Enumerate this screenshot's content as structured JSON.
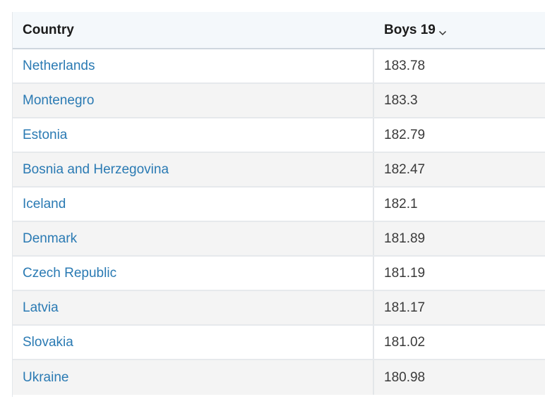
{
  "table": {
    "columns": {
      "country": "Country",
      "value": "Boys 19"
    },
    "sort_icon": "chevron-down-icon",
    "rows": [
      {
        "country": "Netherlands",
        "value": "183.78"
      },
      {
        "country": "Montenegro",
        "value": "183.3"
      },
      {
        "country": "Estonia",
        "value": "182.79"
      },
      {
        "country": "Bosnia and Herzegovina",
        "value": "182.47"
      },
      {
        "country": "Iceland",
        "value": "182.1"
      },
      {
        "country": "Denmark",
        "value": "181.89"
      },
      {
        "country": "Czech Republic",
        "value": "181.19"
      },
      {
        "country": "Latvia",
        "value": "181.17"
      },
      {
        "country": "Slovakia",
        "value": "181.02"
      },
      {
        "country": "Ukraine",
        "value": "180.98"
      }
    ]
  }
}
